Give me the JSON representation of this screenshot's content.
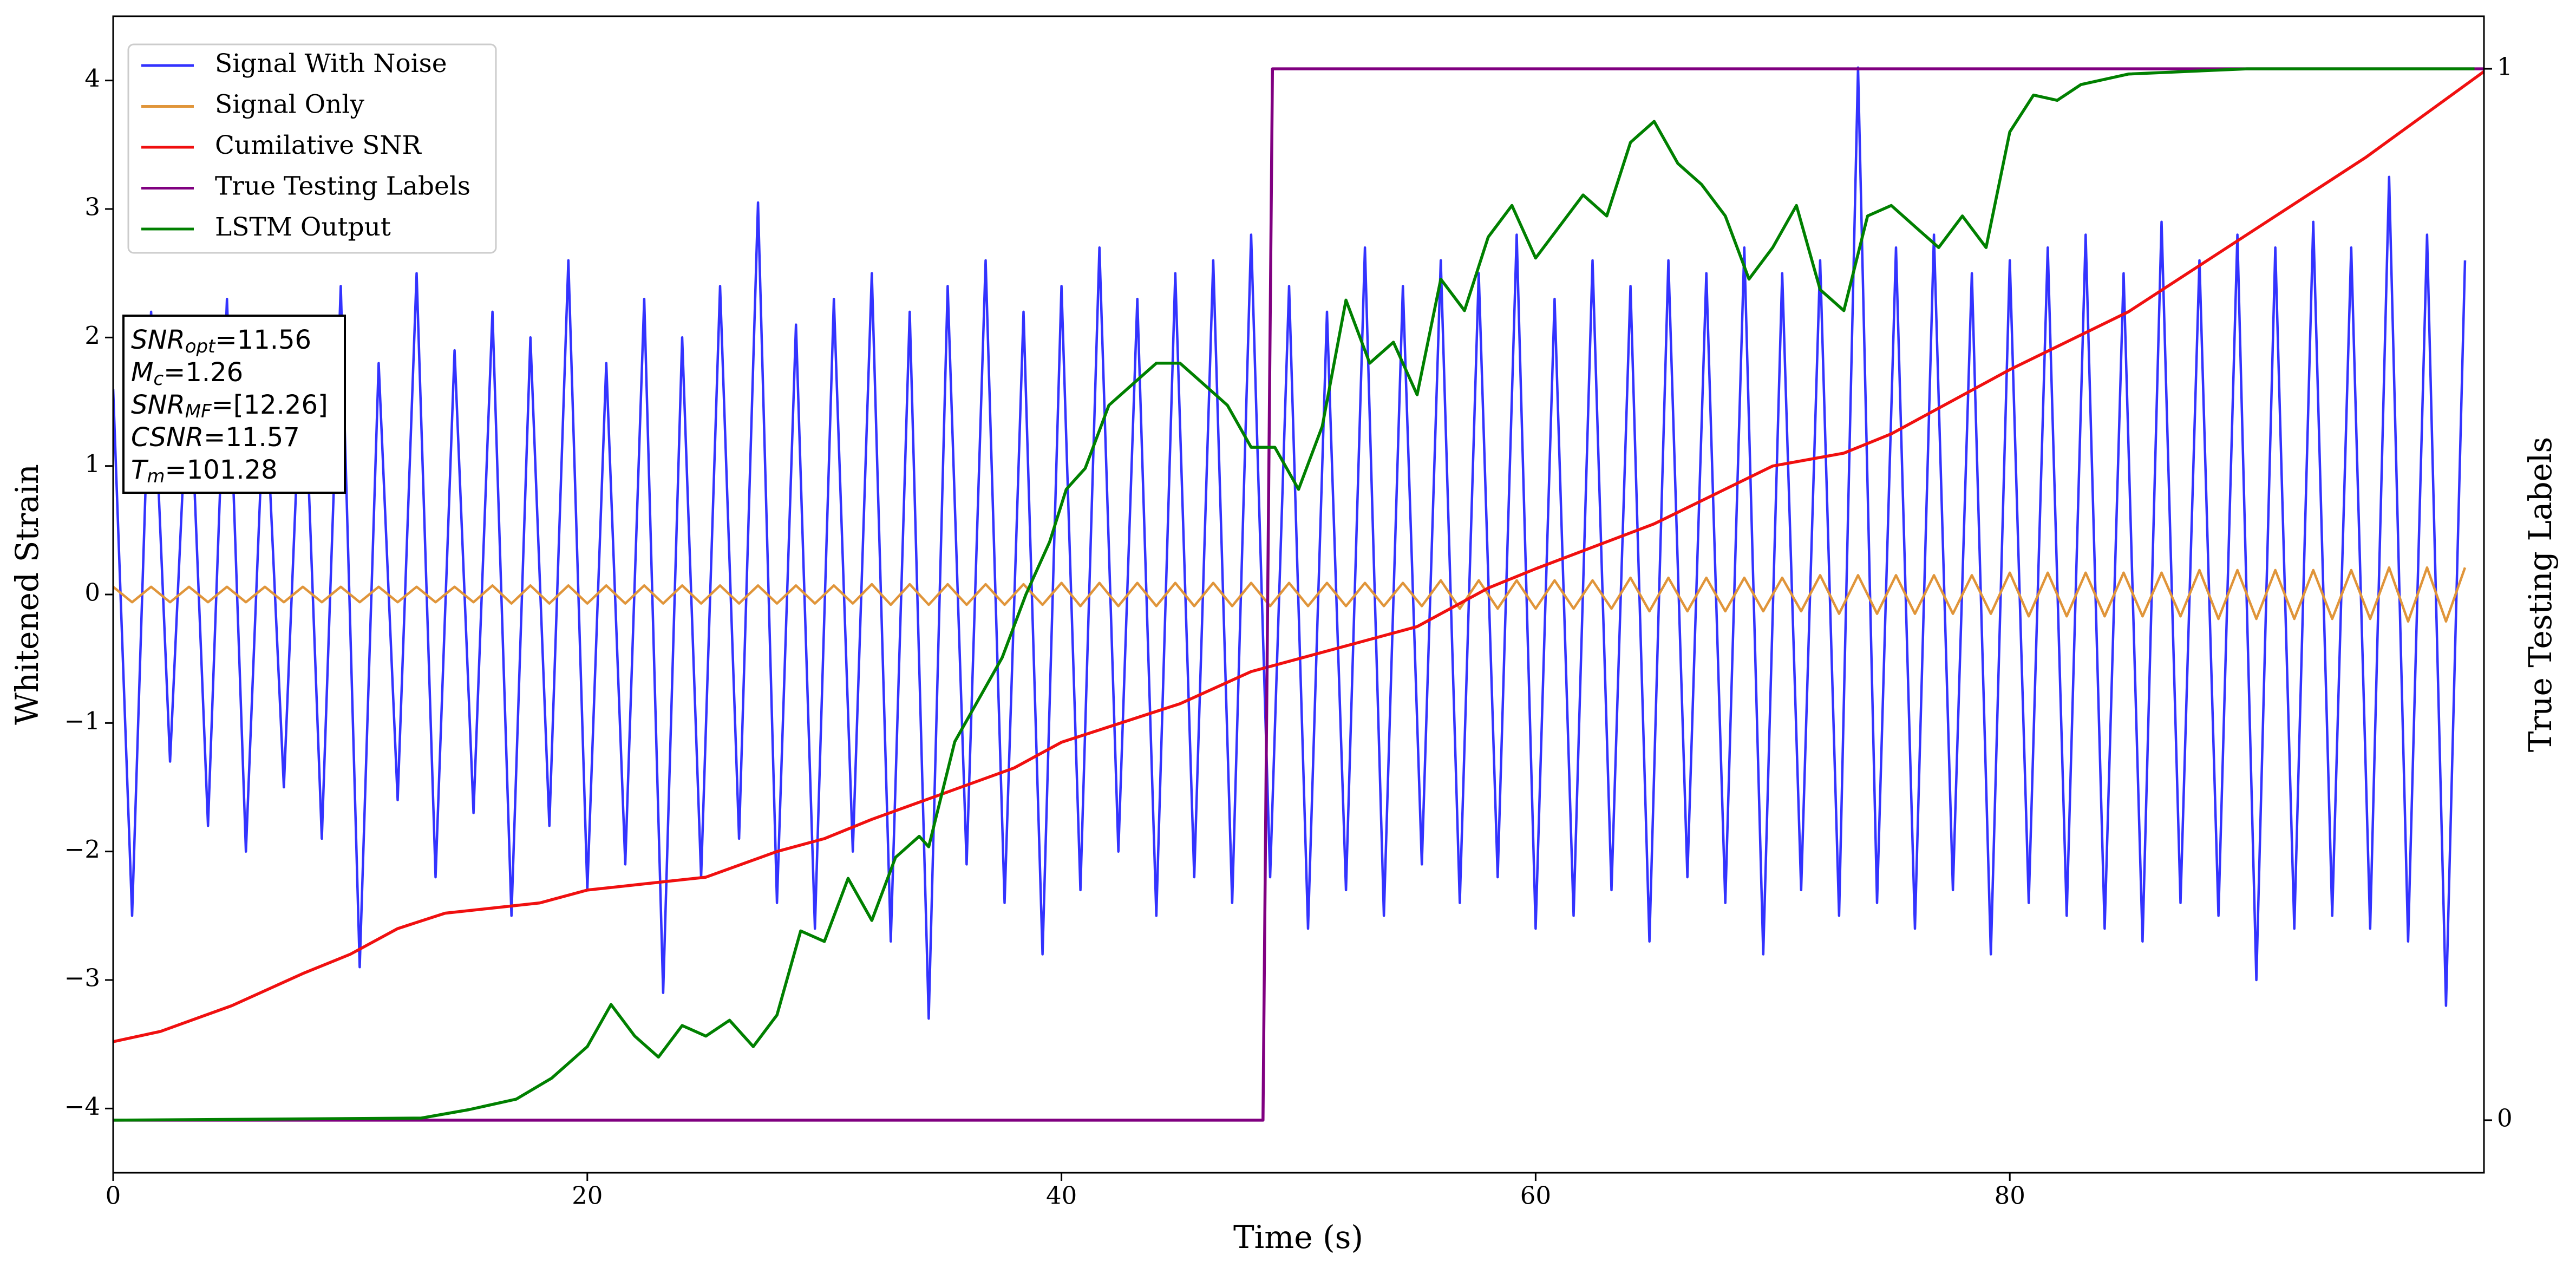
{
  "chart_data": {
    "type": "line",
    "xlabel": "Time (s)",
    "ylabel": "Whitened Strain",
    "y2label": "True Testing Labels",
    "xlim": [
      0,
      100
    ],
    "ylim": [
      -4.5,
      4.5
    ],
    "y2lim": [
      -0.05,
      1.05
    ],
    "xticks": [
      0,
      20,
      40,
      60,
      80
    ],
    "yticks": [
      {
        "value": -4,
        "label": "−4"
      },
      {
        "value": -3,
        "label": "−3"
      },
      {
        "value": -2,
        "label": "−2"
      },
      {
        "value": -1,
        "label": "−1"
      },
      0,
      1,
      2,
      3,
      4
    ],
    "y2ticks": [
      0,
      1
    ],
    "legend": "upper left",
    "annotation": [
      {
        "text": "SNR",
        "sub": "opt",
        "rest": "=11.56"
      },
      {
        "text": "M",
        "sub": "c",
        "rest": "=1.26"
      },
      {
        "text": "SNR",
        "sub": "MF",
        "rest": "=[12.26]"
      },
      {
        "text": "CSNR",
        "rest": "=11.57"
      },
      {
        "text": "T",
        "sub": "m",
        "rest": "=101.28"
      }
    ],
    "series": [
      {
        "name": "Signal With Noise",
        "color": "#3333ff",
        "axis": "y",
        "x": [
          0,
          0.8,
          1.6,
          2.4,
          3.2,
          4,
          4.8,
          5.6,
          6.4,
          7.2,
          8,
          8.8,
          9.6,
          10.4,
          11.2,
          12,
          12.8,
          13.6,
          14.4,
          15.2,
          16,
          16.8,
          17.6,
          18.4,
          19.2,
          20,
          20.8,
          21.6,
          22.4,
          23.2,
          24,
          24.8,
          25.6,
          26.4,
          27.2,
          28,
          28.8,
          29.6,
          30.4,
          31.2,
          32,
          32.8,
          33.6,
          34.4,
          35.2,
          36,
          36.8,
          37.6,
          38.4,
          39.2,
          40,
          40.8,
          41.6,
          42.4,
          43.2,
          44,
          44.8,
          45.6,
          46.4,
          47.2,
          48,
          48.8,
          49.6,
          50.4,
          51.2,
          52,
          52.8,
          53.6,
          54.4,
          55.2,
          56,
          56.8,
          57.6,
          58.4,
          59.2,
          60,
          60.8,
          61.6,
          62.4,
          63.2,
          64,
          64.8,
          65.6,
          66.4,
          67.2,
          68,
          68.8,
          69.6,
          70.4,
          71.2,
          72,
          72.8,
          73.6,
          74.4,
          75.2,
          76,
          76.8,
          77.6,
          78.4,
          79.2,
          80,
          80.8,
          81.6,
          82.4,
          83.2,
          84,
          84.8,
          85.6,
          86.4,
          87.2,
          88,
          88.8,
          89.6,
          90.4,
          91.2,
          92,
          92.8,
          93.6,
          94.4,
          95.2,
          96,
          96.8,
          97.6,
          98.4,
          99.2
        ],
        "values": [
          1.6,
          -2.5,
          2.2,
          -1.3,
          1.9,
          -1.8,
          2.3,
          -2.0,
          1.7,
          -1.5,
          2.1,
          -1.9,
          2.4,
          -2.9,
          1.8,
          -1.6,
          2.5,
          -2.2,
          1.9,
          -1.7,
          2.2,
          -2.5,
          2.0,
          -1.8,
          2.6,
          -2.3,
          1.8,
          -2.1,
          2.3,
          -3.1,
          2.0,
          -2.2,
          2.4,
          -1.9,
          3.05,
          -2.4,
          2.1,
          -2.6,
          2.3,
          -2.0,
          2.5,
          -2.7,
          2.2,
          -3.3,
          2.4,
          -2.1,
          2.6,
          -2.4,
          2.2,
          -2.8,
          2.4,
          -2.3,
          2.7,
          -2.0,
          2.3,
          -2.5,
          2.5,
          -2.2,
          2.6,
          -2.4,
          2.8,
          -2.2,
          2.4,
          -2.6,
          2.2,
          -2.3,
          2.7,
          -2.5,
          2.4,
          -2.1,
          2.6,
          -2.4,
          2.5,
          -2.2,
          2.8,
          -2.6,
          2.3,
          -2.5,
          2.6,
          -2.3,
          2.4,
          -2.7,
          2.6,
          -2.2,
          2.5,
          -2.4,
          2.7,
          -2.8,
          2.5,
          -2.3,
          2.6,
          -2.5,
          4.1,
          -2.4,
          2.7,
          -2.6,
          2.8,
          -2.3,
          2.5,
          -2.8,
          2.6,
          -2.4,
          2.7,
          -2.5,
          2.8,
          -2.6,
          2.5,
          -2.7,
          2.9,
          -2.4,
          2.6,
          -2.5,
          2.8,
          -3.0,
          2.7,
          -2.6,
          2.9,
          -2.5,
          2.7,
          -2.6,
          3.25,
          -2.7,
          2.8,
          -3.2,
          2.6
        ]
      },
      {
        "name": "Signal Only",
        "color": "#e0953a",
        "axis": "y",
        "x": [
          0,
          0.8,
          1.6,
          2.4,
          3.2,
          4,
          4.8,
          5.6,
          6.4,
          7.2,
          8,
          8.8,
          9.6,
          10.4,
          11.2,
          12,
          12.8,
          13.6,
          14.4,
          15.2,
          16,
          16.8,
          17.6,
          18.4,
          19.2,
          20,
          20.8,
          21.6,
          22.4,
          23.2,
          24,
          24.8,
          25.6,
          26.4,
          27.2,
          28,
          28.8,
          29.6,
          30.4,
          31.2,
          32,
          32.8,
          33.6,
          34.4,
          35.2,
          36,
          36.8,
          37.6,
          38.4,
          39.2,
          40,
          40.8,
          41.6,
          42.4,
          43.2,
          44,
          44.8,
          45.6,
          46.4,
          47.2,
          48,
          48.8,
          49.6,
          50.4,
          51.2,
          52,
          52.8,
          53.6,
          54.4,
          55.2,
          56,
          56.8,
          57.6,
          58.4,
          59.2,
          60,
          60.8,
          61.6,
          62.4,
          63.2,
          64,
          64.8,
          65.6,
          66.4,
          67.2,
          68,
          68.8,
          69.6,
          70.4,
          71.2,
          72,
          72.8,
          73.6,
          74.4,
          75.2,
          76,
          76.8,
          77.6,
          78.4,
          79.2,
          80,
          80.8,
          81.6,
          82.4,
          83.2,
          84,
          84.8,
          85.6,
          86.4,
          87.2,
          88,
          88.8,
          89.6,
          90.4,
          91.2,
          92,
          92.8,
          93.6,
          94.4,
          95.2,
          96,
          96.8,
          97.6,
          98.4,
          99.2
        ],
        "values": [
          0.06,
          -0.06,
          0.06,
          -0.06,
          0.06,
          -0.06,
          0.06,
          -0.06,
          0.06,
          -0.06,
          0.06,
          -0.06,
          0.06,
          -0.06,
          0.06,
          -0.06,
          0.06,
          -0.06,
          0.06,
          -0.06,
          0.07,
          -0.07,
          0.07,
          -0.07,
          0.07,
          -0.07,
          0.07,
          -0.07,
          0.07,
          -0.07,
          0.07,
          -0.07,
          0.07,
          -0.07,
          0.07,
          -0.07,
          0.07,
          -0.07,
          0.07,
          -0.07,
          0.08,
          -0.08,
          0.08,
          -0.08,
          0.08,
          -0.08,
          0.08,
          -0.08,
          0.08,
          -0.08,
          0.09,
          -0.09,
          0.09,
          -0.09,
          0.09,
          -0.09,
          0.09,
          -0.09,
          0.09,
          -0.09,
          0.09,
          -0.09,
          0.09,
          -0.09,
          0.09,
          -0.09,
          0.09,
          -0.09,
          0.09,
          -0.09,
          0.11,
          -0.11,
          0.11,
          -0.11,
          0.11,
          -0.11,
          0.11,
          -0.11,
          0.11,
          -0.11,
          0.13,
          -0.13,
          0.13,
          -0.13,
          0.13,
          -0.13,
          0.13,
          -0.13,
          0.13,
          -0.13,
          0.15,
          -0.15,
          0.15,
          -0.15,
          0.15,
          -0.15,
          0.15,
          -0.15,
          0.15,
          -0.15,
          0.17,
          -0.17,
          0.17,
          -0.17,
          0.17,
          -0.17,
          0.17,
          -0.17,
          0.17,
          -0.17,
          0.19,
          -0.19,
          0.19,
          -0.19,
          0.19,
          -0.19,
          0.19,
          -0.19,
          0.19,
          -0.19,
          0.21,
          -0.21,
          0.21,
          -0.21,
          0.21
        ]
      },
      {
        "name": "Cumilative SNR",
        "color": "#f01010",
        "axis": "y",
        "x": [
          0,
          2,
          5,
          8,
          10,
          12,
          14,
          16,
          18,
          20,
          22,
          25,
          28,
          30,
          32,
          35,
          38,
          40,
          45,
          48,
          50,
          55,
          58,
          60,
          65,
          70,
          73,
          75,
          80,
          85,
          90,
          95,
          100
        ],
        "values": [
          -3.48,
          -3.4,
          -3.2,
          -2.95,
          -2.8,
          -2.6,
          -2.48,
          -2.44,
          -2.4,
          -2.3,
          -2.26,
          -2.2,
          -2.0,
          -1.9,
          -1.75,
          -1.55,
          -1.35,
          -1.15,
          -0.85,
          -0.6,
          -0.5,
          -0.25,
          0.05,
          0.2,
          0.55,
          1.0,
          1.1,
          1.25,
          1.75,
          2.2,
          2.8,
          3.4,
          4.07
        ]
      },
      {
        "name": "True Testing Labels",
        "color": "#800080",
        "axis": "y2",
        "x": [
          0,
          48.5,
          48.9,
          100
        ],
        "values": [
          0,
          0,
          1,
          1
        ]
      },
      {
        "name": "LSTM Output",
        "color": "#008000",
        "axis": "y2",
        "x": [
          0,
          13,
          15,
          17,
          18.5,
          19,
          20,
          21,
          22,
          23,
          24,
          25,
          26,
          27,
          28,
          29,
          30,
          31,
          32,
          33,
          34,
          34.4,
          35.5,
          36.5,
          37.5,
          38.5,
          39.5,
          40.2,
          41,
          42,
          43,
          44,
          45,
          46,
          47,
          48,
          49,
          50,
          51,
          52,
          53,
          54,
          55,
          56,
          57,
          58,
          59,
          60,
          61,
          62,
          63,
          64,
          65,
          66,
          67,
          68,
          69,
          70,
          71,
          72,
          73,
          74,
          75,
          76,
          77,
          78,
          79,
          80,
          81,
          82,
          83,
          85,
          90,
          99.6
        ],
        "values": [
          0,
          0.002,
          0.01,
          0.02,
          0.04,
          0.05,
          0.07,
          0.11,
          0.08,
          0.06,
          0.09,
          0.08,
          0.095,
          0.07,
          0.1,
          0.18,
          0.17,
          0.23,
          0.19,
          0.25,
          0.27,
          0.26,
          0.36,
          0.4,
          0.44,
          0.5,
          0.55,
          0.6,
          0.62,
          0.68,
          0.7,
          0.72,
          0.72,
          0.7,
          0.68,
          0.64,
          0.64,
          0.6,
          0.66,
          0.78,
          0.72,
          0.74,
          0.69,
          0.8,
          0.77,
          0.84,
          0.87,
          0.82,
          0.85,
          0.88,
          0.86,
          0.93,
          0.95,
          0.91,
          0.89,
          0.86,
          0.8,
          0.83,
          0.87,
          0.79,
          0.77,
          0.86,
          0.87,
          0.85,
          0.83,
          0.86,
          0.83,
          0.94,
          0.975,
          0.97,
          0.985,
          0.995,
          1.0,
          1.0
        ]
      }
    ]
  }
}
